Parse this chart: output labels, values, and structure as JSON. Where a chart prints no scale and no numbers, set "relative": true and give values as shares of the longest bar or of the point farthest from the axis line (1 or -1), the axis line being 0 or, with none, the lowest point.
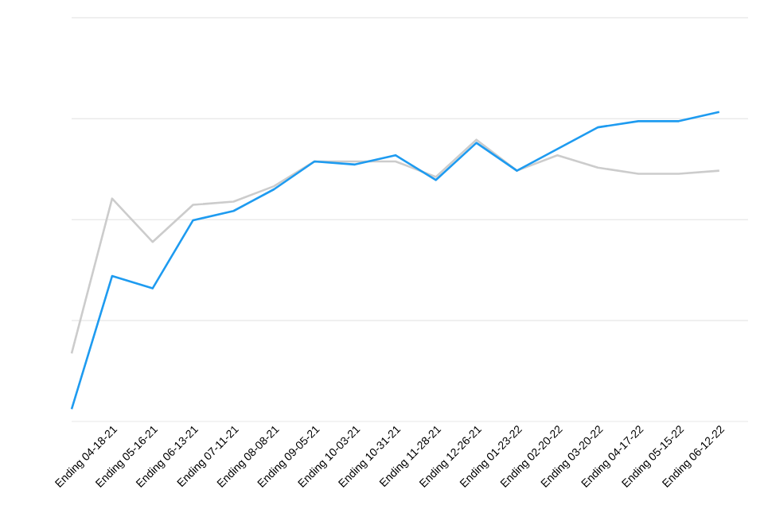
{
  "chart_data": {
    "type": "line",
    "relative": true,
    "grid": "y",
    "tick_labels": "x",
    "categories": [
      null,
      "Ending 04-18-21",
      "Ending 05-16-21",
      "Ending 06-13-21",
      "Ending 07-11-21",
      "Ending 08-08-21",
      "Ending 09-05-21",
      "Ending 10-03-21",
      "Ending 10-31-21",
      "Ending 11-28-21",
      "Ending 12-26-21",
      "Ending 01-23-22",
      "Ending 02-20-22",
      "Ending 03-20-22",
      "Ending 04-17-22",
      "Ending 05-15-22",
      "Ending 06-12-22"
    ],
    "series": [
      {
        "color": "#cccccc",
        "values": [
          0.22,
          0.72,
          0.58,
          0.7,
          0.71,
          0.76,
          0.84,
          0.84,
          0.84,
          0.79,
          0.91,
          0.81,
          0.86,
          0.82,
          0.8,
          0.8,
          0.81
        ]
      },
      {
        "color": "#1e9bf0",
        "values": [
          0.04,
          0.47,
          0.43,
          0.65,
          0.68,
          0.75,
          0.84,
          0.83,
          0.86,
          0.78,
          0.9,
          0.81,
          0.88,
          0.95,
          0.97,
          0.97,
          1.0
        ]
      }
    ]
  }
}
